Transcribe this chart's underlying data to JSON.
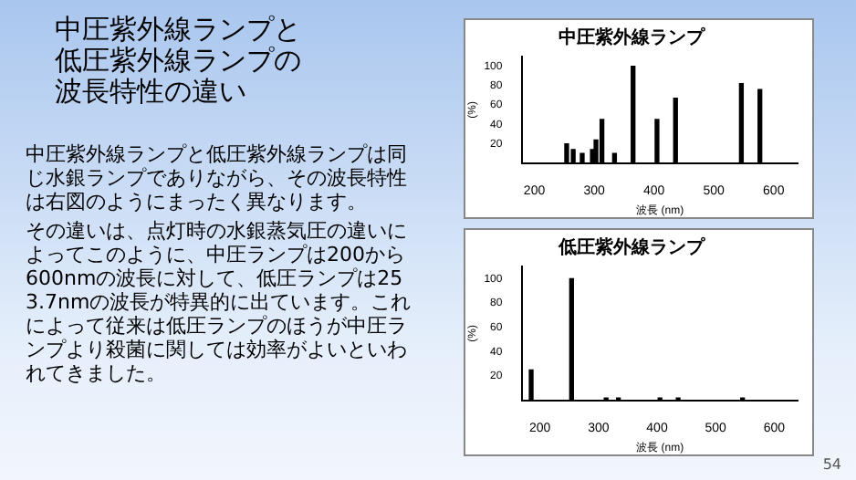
{
  "chart_data": [
    {
      "type": "other",
      "title": "中圧紫外線ランプと低圧紫外線ランプの波長特性の違い",
      "annotations": [
        "中圧紫外線ランプと低圧紫外線ランプは同じ水銀ランプでありながら、その波長特性は右図のようにまったく異なります。",
        "その違いは、点灯時の水銀蒸気圧の違いによってこのように、中圧ランプは200から600nmの波長に対して、低圧ランプは253.7nmの波長が特異的に出ています。これによって従来は低圧ランプのほうが中圧ランプより殺菌に関しては効率がよいといわれてきました。",
        "54"
      ]
    },
    {
      "type": "bar",
      "title": "中圧紫外線ランプ",
      "xlabel": "波長 (nm)",
      "ylabel": "(%)",
      "x": [
        254,
        265,
        280,
        297,
        303,
        313,
        334,
        365,
        405,
        436,
        546,
        577
      ],
      "values": [
        20,
        14,
        10,
        14,
        24,
        45,
        10,
        100,
        45,
        67,
        82,
        76
      ],
      "color": "#000000",
      "xlim": [
        180,
        640
      ],
      "xticks": [
        200,
        300,
        400,
        500,
        600
      ],
      "ylim": [
        0,
        110
      ],
      "yticks": [
        20,
        40,
        60,
        80,
        100
      ],
      "grid": false,
      "legend": false
    },
    {
      "type": "bar",
      "title": "低圧紫外線ランプ",
      "xlabel": "波長 (nm)",
      "ylabel": "(%)",
      "x": [
        185,
        254,
        313,
        334,
        405,
        436,
        546
      ],
      "values": [
        25,
        100,
        2,
        2,
        2,
        2,
        2
      ],
      "color": "#000000",
      "xlim": [
        170,
        640
      ],
      "xticks": [
        200,
        300,
        400,
        500,
        600
      ],
      "ylim": [
        0,
        110
      ],
      "yticks": [
        20,
        40,
        60,
        80,
        100
      ],
      "grid": false,
      "legend": false
    }
  ]
}
